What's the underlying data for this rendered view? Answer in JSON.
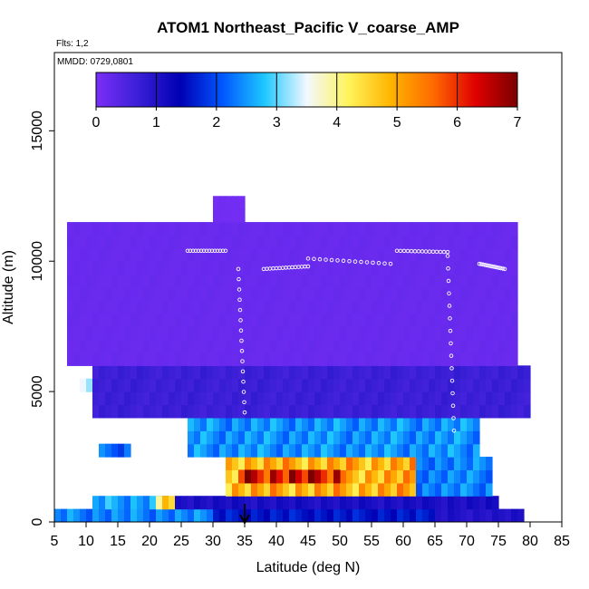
{
  "chart_data": {
    "type": "heatmap",
    "title": "ATOM1 Northeast_Pacific V_coarse_AMP",
    "flights_label": "Flts: 1,2",
    "mmdd_label": "MMDD: 0729,0801",
    "xlabel": "Latitude (deg N)",
    "ylabel": "Altitude (m)",
    "xlim": [
      5,
      85
    ],
    "ylim": [
      0,
      18000
    ],
    "x_ticks": [
      5,
      10,
      15,
      20,
      25,
      30,
      35,
      40,
      45,
      50,
      55,
      60,
      65,
      70,
      75,
      80,
      85
    ],
    "y_ticks": [
      0,
      5000,
      10000,
      15000
    ],
    "colorbar": {
      "min": 0,
      "max": 7,
      "ticks": [
        0,
        1,
        2,
        3,
        4,
        5,
        6,
        7
      ],
      "stops": [
        "#7b2ff7",
        "#3a1fd6",
        "#0000b4",
        "#0057ff",
        "#1ec8ff",
        "#f2f8ff",
        "#fff35a",
        "#ffb400",
        "#ff6a00",
        "#e00000",
        "#7a0000"
      ]
    },
    "bin_width_deg": 1,
    "bin_height_m": 500,
    "latitude_bands": [
      {
        "lat_range": [
          5,
          30
        ],
        "altitude_range_m": [
          0,
          500
        ],
        "value": 2.4
      },
      {
        "lat_range": [
          30,
          65
        ],
        "altitude_range_m": [
          0,
          500
        ],
        "value": 1.6
      },
      {
        "lat_range": [
          65,
          79
        ],
        "altitude_range_m": [
          0,
          500
        ],
        "value": 1.0
      },
      {
        "lat_range": [
          11,
          23
        ],
        "altitude_range_m": [
          500,
          1000
        ],
        "value": 2.6
      },
      {
        "lat_range": [
          21,
          24
        ],
        "altitude_range_m": [
          500,
          1000
        ],
        "value": 4.6
      },
      {
        "lat_range": [
          24,
          75
        ],
        "altitude_range_m": [
          500,
          1000
        ],
        "value": 1.1
      },
      {
        "lat_range": [
          32,
          62
        ],
        "altitude_range_m": [
          1000,
          2500
        ],
        "value": 5.0
      },
      {
        "lat_range": [
          34,
          50
        ],
        "altitude_range_m": [
          1500,
          2000
        ],
        "value": 6.4
      },
      {
        "lat_range": [
          62,
          74
        ],
        "altitude_range_m": [
          1000,
          2500
        ],
        "value": 2.4
      },
      {
        "lat_range": [
          26,
          72
        ],
        "altitude_range_m": [
          2500,
          4000
        ],
        "value": 2.5
      },
      {
        "lat_range": [
          12,
          17
        ],
        "altitude_range_m": [
          2500,
          3000
        ],
        "value": 2.2
      },
      {
        "lat_range": [
          9,
          11
        ],
        "altitude_range_m": [
          5000,
          5500
        ],
        "value": 3.2
      },
      {
        "lat_range": [
          11,
          80
        ],
        "altitude_range_m": [
          4000,
          6000
        ],
        "value": 0.7
      },
      {
        "lat_range": [
          7,
          78
        ],
        "altitude_range_m": [
          6000,
          11500
        ],
        "value": 0.2
      },
      {
        "lat_range": [
          30,
          35
        ],
        "altitude_range_m": [
          11500,
          12500
        ],
        "value": 0.1
      }
    ],
    "flight_track_markers": "white open circles along flight tracks",
    "arrow_marker_latitude": 35
  }
}
